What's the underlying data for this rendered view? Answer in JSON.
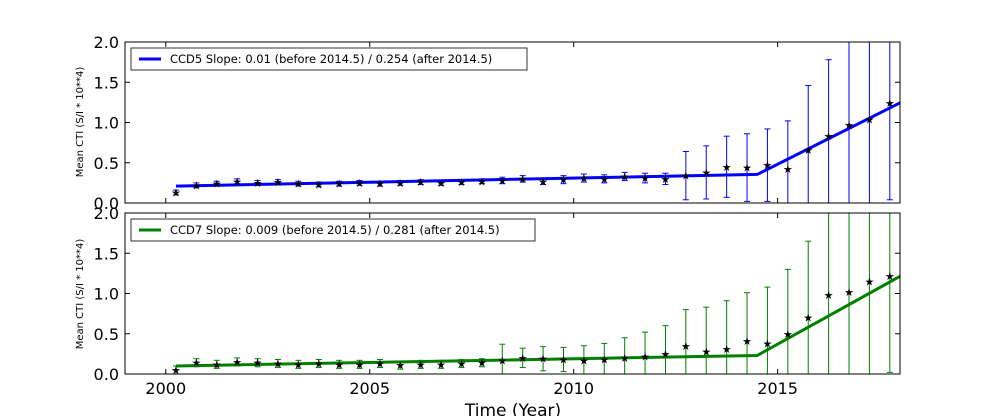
{
  "chart_data": [
    {
      "type": "scatter",
      "panel": "top",
      "ylabel": "Mean CTI (S/I * 10**4)",
      "ylim": [
        0.0,
        2.0
      ],
      "xlim": [
        1999.0,
        2018.0
      ],
      "yticks": [
        "0.0",
        "0.5",
        "1.0",
        "1.5",
        "2.0"
      ],
      "legend": {
        "label": "CCD5 Slope: 0.01 (before 2014.5) / 0.254 (after 2014.5)",
        "placement": "top-left"
      },
      "color": "#0000ff",
      "fit": {
        "break": 2014.5,
        "y_start": 0.21,
        "y_at_break": 0.355,
        "slope_after": 0.254
      },
      "series": [
        {
          "name": "CCD5",
          "x": [
            2000.25,
            2000.75,
            2001.25,
            2001.75,
            2002.25,
            2002.75,
            2003.25,
            2003.75,
            2004.25,
            2004.75,
            2005.25,
            2005.75,
            2006.25,
            2006.75,
            2007.25,
            2007.75,
            2008.25,
            2008.75,
            2009.25,
            2009.75,
            2010.25,
            2010.75,
            2011.25,
            2011.75,
            2012.25,
            2012.75,
            2013.25,
            2013.75,
            2014.25,
            2014.75,
            2015.25,
            2015.75,
            2016.25,
            2016.75,
            2017.25,
            2017.75
          ],
          "y": [
            0.13,
            0.22,
            0.24,
            0.27,
            0.25,
            0.26,
            0.24,
            0.23,
            0.24,
            0.25,
            0.24,
            0.25,
            0.26,
            0.25,
            0.26,
            0.27,
            0.28,
            0.3,
            0.27,
            0.29,
            0.31,
            0.3,
            0.33,
            0.31,
            0.3,
            0.34,
            0.38,
            0.45,
            0.44,
            0.47,
            0.42,
            0.66,
            0.83,
            0.97,
            1.04,
            1.24
          ]
        },
        {
          "name": "error",
          "values": [
            0.03,
            0.03,
            0.03,
            0.03,
            0.03,
            0.03,
            0.03,
            0.03,
            0.03,
            0.03,
            0.03,
            0.03,
            0.03,
            0.03,
            0.03,
            0.03,
            0.04,
            0.04,
            0.04,
            0.05,
            0.05,
            0.05,
            0.05,
            0.06,
            0.07,
            0.3,
            0.33,
            0.38,
            0.42,
            0.45,
            0.6,
            0.8,
            0.95,
            1.05,
            1.1,
            1.2
          ]
        }
      ]
    },
    {
      "type": "scatter",
      "panel": "bottom",
      "ylabel": "Mean CTI (S/I * 10**4)",
      "xlabel": "Time (Year)",
      "ylim": [
        0.0,
        2.0
      ],
      "xlim": [
        1999.0,
        2018.0
      ],
      "xticks": [
        "2000",
        "2005",
        "2010",
        "2015"
      ],
      "yticks": [
        "0.0",
        "0.5",
        "1.0",
        "1.5",
        "2.0"
      ],
      "legend": {
        "label": "CCD7 Slope: 0.009 (before 2014.5) / 0.281 (after 2014.5)",
        "placement": "top-left"
      },
      "color": "#008000",
      "fit": {
        "break": 2014.5,
        "y_start": 0.1,
        "y_at_break": 0.23,
        "slope_after": 0.281
      },
      "series": [
        {
          "name": "CCD7",
          "x": [
            2000.25,
            2000.75,
            2001.25,
            2001.75,
            2002.25,
            2002.75,
            2003.25,
            2003.75,
            2004.25,
            2004.75,
            2005.25,
            2005.75,
            2006.25,
            2006.75,
            2007.25,
            2007.75,
            2008.25,
            2008.75,
            2009.25,
            2009.75,
            2010.25,
            2010.75,
            2011.25,
            2011.75,
            2012.25,
            2012.75,
            2013.25,
            2013.75,
            2014.25,
            2014.75,
            2015.25,
            2015.75,
            2016.25,
            2016.75,
            2017.25,
            2017.75
          ],
          "y": [
            0.05,
            0.14,
            0.12,
            0.15,
            0.14,
            0.13,
            0.12,
            0.13,
            0.12,
            0.12,
            0.13,
            0.11,
            0.12,
            0.12,
            0.13,
            0.14,
            0.17,
            0.2,
            0.19,
            0.18,
            0.17,
            0.18,
            0.2,
            0.22,
            0.25,
            0.35,
            0.28,
            0.31,
            0.41,
            0.38,
            0.5,
            0.7,
            0.98,
            1.02,
            1.15,
            1.22
          ]
        },
        {
          "name": "error",
          "values": [
            0.05,
            0.05,
            0.05,
            0.05,
            0.05,
            0.05,
            0.05,
            0.05,
            0.05,
            0.05,
            0.05,
            0.05,
            0.05,
            0.05,
            0.05,
            0.05,
            0.2,
            0.12,
            0.15,
            0.15,
            0.18,
            0.2,
            0.25,
            0.3,
            0.35,
            0.45,
            0.55,
            0.6,
            0.6,
            0.7,
            0.8,
            0.95,
            1.05,
            1.1,
            1.15,
            1.2
          ]
        }
      ]
    }
  ]
}
